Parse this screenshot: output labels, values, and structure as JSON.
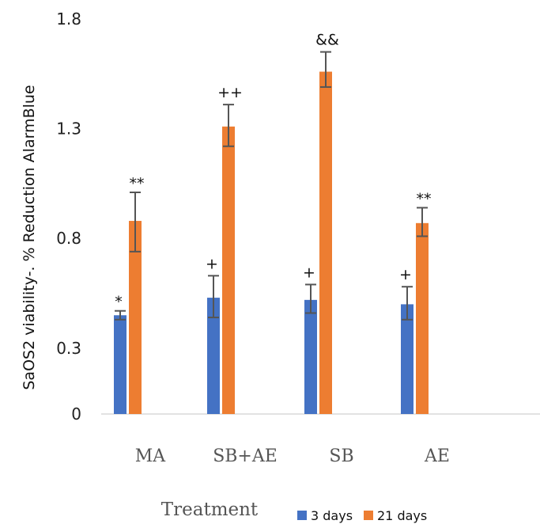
{
  "chart_data": {
    "type": "bar",
    "categories": [
      "MA",
      "SB+AE",
      "SB",
      "AE"
    ],
    "xlabel": "Treatment",
    "ylabel": "SaOS2 viability-. % Reduction AlarmBlue",
    "y_ticks": [
      {
        "label": "1.8",
        "value": 1.8
      },
      {
        "label": "1.3",
        "value": 1.3
      },
      {
        "label": "0.8",
        "value": 0.8
      },
      {
        "label": "0.3",
        "value": 0.3
      },
      {
        "label": "0",
        "value": 0.0
      }
    ],
    "ylim": [
      0,
      1.8
    ],
    "grid": false,
    "legend_position": "bottom",
    "series": [
      {
        "name": "3 days",
        "color": "#4472c4",
        "values": [
          0.45,
          0.53,
          0.52,
          0.5
        ],
        "error_low": [
          0.43,
          0.44,
          0.46,
          0.43
        ],
        "error_high": [
          0.47,
          0.63,
          0.59,
          0.58
        ],
        "annotations": [
          "*",
          "+",
          "+",
          "+"
        ]
      },
      {
        "name": "21 days",
        "color": "#ed7d31",
        "values": [
          0.88,
          1.31,
          1.56,
          0.87
        ],
        "error_low": [
          0.74,
          1.22,
          1.49,
          0.81
        ],
        "error_high": [
          1.01,
          1.41,
          1.65,
          0.94
        ],
        "annotations": [
          "**",
          "++",
          "&&",
          "**"
        ]
      }
    ]
  }
}
